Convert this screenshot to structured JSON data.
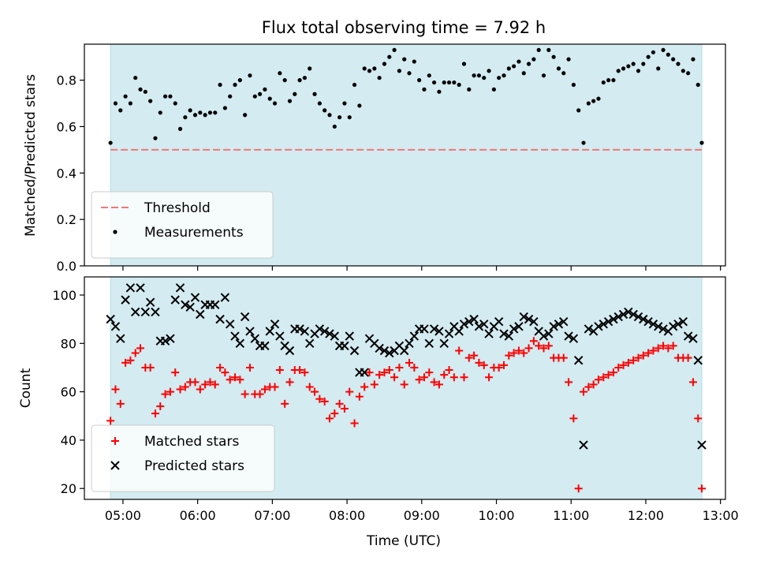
{
  "colors": {
    "observing_window": "#d3ebf1",
    "threshold": "#f07878",
    "measurements": "#000000",
    "matched": "#ff0000",
    "predicted": "#000000"
  },
  "chart_data": [
    {
      "type": "scatter",
      "title": "Flux total observing time = 7.92 h",
      "xlabel": "",
      "ylabel": "Matched/Predicted stars",
      "xlim": [
        "04:29",
        "13:04"
      ],
      "ylim": [
        0,
        0.955
      ],
      "yticks": [
        0.0,
        0.2,
        0.4,
        0.6,
        0.8
      ],
      "ytick_labels": [
        "0.0",
        "0.2",
        "0.4",
        "0.6",
        "0.8"
      ],
      "grid": false,
      "legend_position": "lower-left",
      "shaded_span": [
        "04:50",
        "12:45"
      ],
      "threshold": {
        "name": "Threshold",
        "value": 0.5
      },
      "series": [
        {
          "name": "Measurements",
          "marker": "dot",
          "x": [
            "04:50",
            "04:54",
            "04:58",
            "05:02",
            "05:06",
            "05:10",
            "05:14",
            "05:18",
            "05:22",
            "05:26",
            "05:30",
            "05:34",
            "05:38",
            "05:42",
            "05:46",
            "05:50",
            "05:54",
            "05:58",
            "06:02",
            "06:06",
            "06:10",
            "06:14",
            "06:18",
            "06:22",
            "06:26",
            "06:30",
            "06:34",
            "06:38",
            "06:42",
            "06:46",
            "06:50",
            "06:54",
            "06:58",
            "07:02",
            "07:06",
            "07:10",
            "07:14",
            "07:18",
            "07:22",
            "07:26",
            "07:30",
            "07:34",
            "07:38",
            "07:42",
            "07:46",
            "07:50",
            "07:54",
            "07:58",
            "08:02",
            "08:06",
            "08:10",
            "08:14",
            "08:18",
            "08:22",
            "08:26",
            "08:30",
            "08:34",
            "08:38",
            "08:42",
            "08:46",
            "08:50",
            "08:54",
            "08:58",
            "09:02",
            "09:06",
            "09:10",
            "09:14",
            "09:18",
            "09:22",
            "09:26",
            "09:30",
            "09:34",
            "09:38",
            "09:42",
            "09:46",
            "09:50",
            "09:54",
            "09:58",
            "10:02",
            "10:06",
            "10:10",
            "10:14",
            "10:18",
            "10:22",
            "10:26",
            "10:30",
            "10:34",
            "10:38",
            "10:42",
            "10:46",
            "10:50",
            "10:54",
            "10:58",
            "11:02",
            "11:06",
            "11:10",
            "11:14",
            "11:18",
            "11:22",
            "11:26",
            "11:30",
            "11:34",
            "11:38",
            "11:42",
            "11:46",
            "11:50",
            "11:54",
            "11:58",
            "12:02",
            "12:06",
            "12:10",
            "12:14",
            "12:18",
            "12:22",
            "12:26",
            "12:30",
            "12:34",
            "12:38",
            "12:42",
            "12:45"
          ],
          "y": [
            0.53,
            0.7,
            0.67,
            0.73,
            0.7,
            0.81,
            0.76,
            0.75,
            0.71,
            0.55,
            0.66,
            0.73,
            0.73,
            0.7,
            0.59,
            0.64,
            0.67,
            0.65,
            0.66,
            0.65,
            0.66,
            0.66,
            0.78,
            0.68,
            0.73,
            0.78,
            0.8,
            0.65,
            0.82,
            0.73,
            0.74,
            0.76,
            0.72,
            0.7,
            0.83,
            0.8,
            0.71,
            0.74,
            0.8,
            0.81,
            0.85,
            0.74,
            0.7,
            0.67,
            0.65,
            0.6,
            0.64,
            0.7,
            0.64,
            0.78,
            0.69,
            0.85,
            0.84,
            0.85,
            0.81,
            0.87,
            0.9,
            0.93,
            0.84,
            0.89,
            0.83,
            0.88,
            0.8,
            0.76,
            0.82,
            0.79,
            0.75,
            0.79,
            0.79,
            0.79,
            0.78,
            0.87,
            0.76,
            0.82,
            0.82,
            0.81,
            0.84,
            0.76,
            0.81,
            0.82,
            0.85,
            0.86,
            0.88,
            0.83,
            0.87,
            0.89,
            0.93,
            0.82,
            0.93,
            0.9,
            0.85,
            0.83,
            0.89,
            0.78,
            0.67,
            0.53,
            0.7,
            0.71,
            0.72,
            0.79,
            0.8,
            0.8,
            0.84,
            0.85,
            0.86,
            0.87,
            0.84,
            0.87,
            0.9,
            0.92,
            0.85,
            0.93,
            0.91,
            0.89,
            0.87,
            0.84,
            0.83,
            0.89,
            0.78,
            0.53
          ]
        }
      ]
    },
    {
      "type": "scatter",
      "title": "",
      "xlabel": "Time (UTC)",
      "ylabel": "Count",
      "xlim": [
        "04:29",
        "13:04"
      ],
      "ylim": [
        15.5,
        107.5
      ],
      "yticks": [
        20,
        40,
        60,
        80,
        100
      ],
      "ytick_labels": [
        "20",
        "40",
        "60",
        "80",
        "100"
      ],
      "xticks": [
        "05:00",
        "06:00",
        "07:00",
        "08:00",
        "09:00",
        "10:00",
        "11:00",
        "12:00",
        "13:00"
      ],
      "grid": false,
      "legend_position": "lower-left",
      "shaded_span": [
        "04:50",
        "12:45"
      ],
      "series": [
        {
          "name": "Matched stars",
          "marker": "plus",
          "x": [
            "04:50",
            "04:54",
            "04:58",
            "05:02",
            "05:06",
            "05:10",
            "05:14",
            "05:18",
            "05:22",
            "05:26",
            "05:30",
            "05:34",
            "05:38",
            "05:42",
            "05:46",
            "05:50",
            "05:54",
            "05:58",
            "06:02",
            "06:06",
            "06:10",
            "06:14",
            "06:18",
            "06:22",
            "06:26",
            "06:30",
            "06:34",
            "06:38",
            "06:42",
            "06:46",
            "06:50",
            "06:54",
            "06:58",
            "07:02",
            "07:06",
            "07:10",
            "07:14",
            "07:18",
            "07:22",
            "07:26",
            "07:30",
            "07:34",
            "07:38",
            "07:42",
            "07:46",
            "07:50",
            "07:54",
            "07:58",
            "08:02",
            "08:06",
            "08:10",
            "08:14",
            "08:18",
            "08:22",
            "08:26",
            "08:30",
            "08:34",
            "08:38",
            "08:42",
            "08:46",
            "08:50",
            "08:54",
            "08:58",
            "09:02",
            "09:06",
            "09:10",
            "09:14",
            "09:18",
            "09:22",
            "09:26",
            "09:30",
            "09:34",
            "09:38",
            "09:42",
            "09:46",
            "09:50",
            "09:54",
            "09:58",
            "10:02",
            "10:06",
            "10:10",
            "10:14",
            "10:18",
            "10:22",
            "10:26",
            "10:30",
            "10:34",
            "10:38",
            "10:42",
            "10:46",
            "10:50",
            "10:54",
            "10:58",
            "11:02",
            "11:06",
            "11:10",
            "11:14",
            "11:18",
            "11:22",
            "11:26",
            "11:30",
            "11:34",
            "11:38",
            "11:42",
            "11:46",
            "11:50",
            "11:54",
            "11:58",
            "12:02",
            "12:06",
            "12:10",
            "12:14",
            "12:18",
            "12:22",
            "12:26",
            "12:30",
            "12:34",
            "12:38",
            "12:42",
            "12:45"
          ],
          "y": [
            48,
            61,
            55,
            72,
            73,
            76,
            78,
            70,
            70,
            51,
            54,
            59,
            60,
            68,
            61,
            62,
            64,
            64,
            61,
            63,
            64,
            63,
            70,
            68,
            65,
            66,
            65,
            59,
            70,
            59,
            59,
            61,
            62,
            62,
            69,
            55,
            64,
            69,
            69,
            68,
            62,
            60,
            57,
            56,
            49,
            51,
            55,
            53,
            60,
            47,
            58,
            62,
            68,
            63,
            67,
            68,
            69,
            66,
            70,
            63,
            72,
            70,
            65,
            66,
            68,
            64,
            63,
            67,
            69,
            66,
            77,
            66,
            74,
            75,
            72,
            71,
            66,
            70,
            70,
            71,
            75,
            76,
            77,
            76,
            78,
            81,
            79,
            78,
            79,
            74,
            74,
            74,
            64,
            49,
            20,
            60,
            62,
            63,
            65,
            66,
            67,
            68,
            70,
            71,
            72,
            73,
            74,
            75,
            76,
            77,
            78,
            79,
            78,
            79,
            74,
            74,
            74,
            64,
            49,
            20
          ]
        },
        {
          "name": "Predicted stars",
          "marker": "cross",
          "x": [
            "04:50",
            "04:54",
            "04:58",
            "05:02",
            "05:06",
            "05:10",
            "05:14",
            "05:18",
            "05:22",
            "05:26",
            "05:30",
            "05:34",
            "05:38",
            "05:42",
            "05:46",
            "05:50",
            "05:54",
            "05:58",
            "06:02",
            "06:06",
            "06:10",
            "06:14",
            "06:18",
            "06:22",
            "06:26",
            "06:30",
            "06:34",
            "06:38",
            "06:42",
            "06:46",
            "06:50",
            "06:54",
            "06:58",
            "07:02",
            "07:06",
            "07:10",
            "07:14",
            "07:18",
            "07:22",
            "07:26",
            "07:30",
            "07:34",
            "07:38",
            "07:42",
            "07:46",
            "07:50",
            "07:54",
            "07:58",
            "08:02",
            "08:06",
            "08:10",
            "08:14",
            "08:18",
            "08:22",
            "08:26",
            "08:30",
            "08:34",
            "08:38",
            "08:42",
            "08:46",
            "08:50",
            "08:54",
            "08:58",
            "09:02",
            "09:06",
            "09:10",
            "09:14",
            "09:18",
            "09:22",
            "09:26",
            "09:30",
            "09:34",
            "09:38",
            "09:42",
            "09:46",
            "09:50",
            "09:54",
            "09:58",
            "10:02",
            "10:06",
            "10:10",
            "10:14",
            "10:18",
            "10:22",
            "10:26",
            "10:30",
            "10:34",
            "10:38",
            "10:42",
            "10:46",
            "10:50",
            "10:54",
            "10:58",
            "11:02",
            "11:06",
            "11:10",
            "11:14",
            "11:18",
            "11:22",
            "11:26",
            "11:30",
            "11:34",
            "11:38",
            "11:42",
            "11:46",
            "11:50",
            "11:54",
            "11:58",
            "12:02",
            "12:06",
            "12:10",
            "12:14",
            "12:18",
            "12:22",
            "12:26",
            "12:30",
            "12:34",
            "12:38",
            "12:42",
            "12:45"
          ],
          "y": [
            90,
            87,
            82,
            98,
            103,
            93,
            103,
            93,
            97,
            93,
            81,
            81,
            82,
            98,
            103,
            96,
            95,
            99,
            92,
            96,
            96,
            96,
            90,
            99,
            88,
            83,
            80,
            91,
            85,
            82,
            79,
            79,
            85,
            88,
            83,
            79,
            77,
            86,
            86,
            85,
            80,
            84,
            86,
            85,
            84,
            83,
            79,
            79,
            83,
            77,
            68,
            68,
            82,
            80,
            78,
            77,
            76,
            77,
            79,
            77,
            80,
            83,
            86,
            86,
            80,
            86,
            85,
            80,
            84,
            87,
            85,
            88,
            89,
            90,
            87,
            88,
            84,
            87,
            89,
            84,
            83,
            86,
            87,
            91,
            90,
            89,
            85,
            83,
            84,
            87,
            88,
            89,
            83,
            82,
            73,
            38,
            86,
            85,
            87,
            88,
            89,
            90,
            91,
            92,
            93,
            92,
            91,
            90,
            89,
            88,
            87,
            86,
            85,
            87,
            88,
            89,
            83,
            82,
            73,
            38
          ]
        }
      ]
    }
  ]
}
